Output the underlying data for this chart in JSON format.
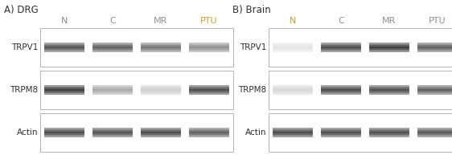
{
  "panel_A_title": "A) DRG",
  "panel_B_title": "B) Brain",
  "col_labels": [
    "N",
    "C",
    "MR",
    "PTU"
  ],
  "col_label_colors_A": [
    "#909090",
    "#909090",
    "#909090",
    "#c8a020"
  ],
  "col_label_colors_B": [
    "#c8a020",
    "#909090",
    "#909090",
    "#909090"
  ],
  "row_labels": [
    "TRPV1",
    "TRPM8",
    "Actin"
  ],
  "background": "#ffffff",
  "panel_title_color": "#303030",
  "row_label_color": "#303030",
  "DRG_TRPV1": [
    0.78,
    0.72,
    0.62,
    0.5
  ],
  "DRG_TRPM8": [
    0.88,
    0.38,
    0.22,
    0.82
  ],
  "DRG_Actin": [
    0.82,
    0.78,
    0.82,
    0.72
  ],
  "Brain_TRPV1": [
    0.12,
    0.82,
    0.88,
    0.72
  ],
  "Brain_TRPM8": [
    0.18,
    0.82,
    0.8,
    0.72
  ],
  "Brain_Actin": [
    0.82,
    0.8,
    0.8,
    0.75
  ],
  "fig_width": 5.62,
  "fig_height": 1.93,
  "dpi": 100
}
